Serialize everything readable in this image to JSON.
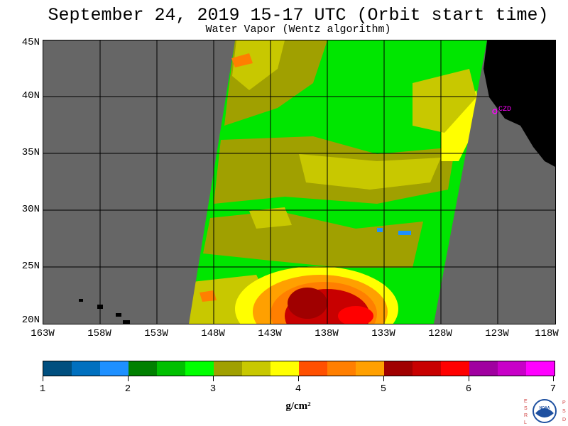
{
  "header": {
    "title": "September 24, 2019  15-17 UTC  (Orbit start time)",
    "subtitle": "Water Vapor (Wentz algorithm)"
  },
  "map": {
    "lat_labels": [
      "45N",
      "40N",
      "35N",
      "30N",
      "25N",
      "20N"
    ],
    "lon_labels": [
      "163W",
      "158W",
      "153W",
      "148W",
      "143W",
      "138W",
      "133W",
      "128W",
      "123W",
      "118W"
    ],
    "station_label": "CZD",
    "background_color": "#666666",
    "land_color": "#000000"
  },
  "colorbar": {
    "tick_labels": [
      "1",
      "2",
      "3",
      "4",
      "5",
      "6",
      "7"
    ],
    "units": "g/cm²",
    "colors": [
      "#004f7f",
      "#0070bf",
      "#1e90ff",
      "#008000",
      "#00c000",
      "#00ff00",
      "#a0a000",
      "#c8c800",
      "#ffff00",
      "#ff5000",
      "#ff7f00",
      "#ffa000",
      "#a00000",
      "#c80000",
      "#ff0000",
      "#a000a0",
      "#c800c8",
      "#ff00ff"
    ]
  },
  "logo": {
    "left_letters": "ESRL",
    "right_letters": "PSD",
    "center_text": "NOAA"
  }
}
